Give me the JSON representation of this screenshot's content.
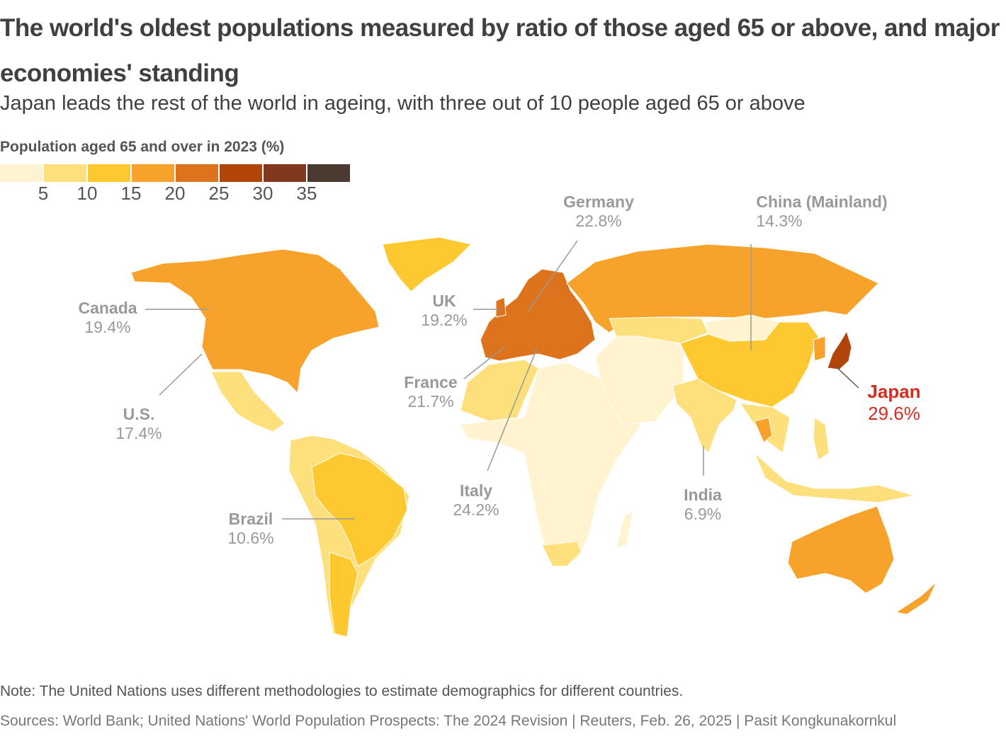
{
  "title": "The world's oldest populations measured by ratio of those aged 65 or above, and major economies' standing",
  "subtitle": "Japan leads the rest of the world in ageing, with three out of 10 people aged 65 or above",
  "legend": {
    "title": "Population aged 65 and over in 2023 (%)",
    "colors": [
      "#fff3d0",
      "#fde07c",
      "#fec930",
      "#f7a22a",
      "#de731d",
      "#b14408",
      "#82381d",
      "#4b3a30"
    ],
    "ticks": [
      "5",
      "10",
      "15",
      "20",
      "25",
      "30",
      "35"
    ]
  },
  "labels": {
    "canada": {
      "name": "Canada",
      "value": "19.4%"
    },
    "us": {
      "name": "U.S.",
      "value": "17.4%"
    },
    "brazil": {
      "name": "Brazil",
      "value": "10.6%"
    },
    "uk": {
      "name": "UK",
      "value": "19.2%"
    },
    "france": {
      "name": "France",
      "value": "21.7%"
    },
    "germany": {
      "name": "Germany",
      "value": "22.8%"
    },
    "italy": {
      "name": "Italy",
      "value": "24.2%"
    },
    "china": {
      "name": "China (Mainland)",
      "value": "14.3%"
    },
    "india": {
      "name": "India",
      "value": "6.9%"
    },
    "japan": {
      "name": "Japan",
      "value": "29.6%"
    }
  },
  "highlight_color": "#d62d20",
  "note": "Note: The United Nations uses different methodologies to estimate demographics for different countries.",
  "source": "Sources: World Bank; United Nations' World Population Prospects: The 2024 Revision | Reuters, Feb. 26, 2025 | Pasit Kongkunakornkul"
}
